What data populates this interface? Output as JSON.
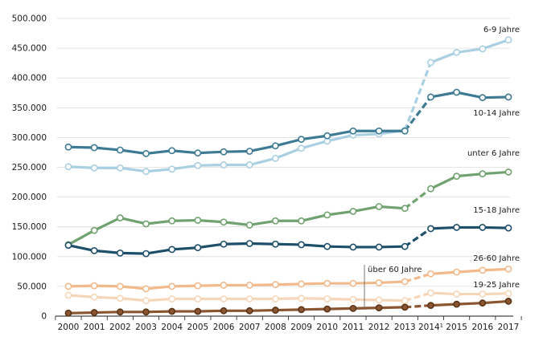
{
  "chart_data": {
    "type": "line",
    "title": "",
    "xlabel": "",
    "ylabel": "",
    "ylim": [
      0,
      500000
    ],
    "y_ticks": [
      {
        "value": 0,
        "label": "0"
      },
      {
        "value": 50000,
        "label": "50.000"
      },
      {
        "value": 100000,
        "label": "100.000"
      },
      {
        "value": 150000,
        "label": "150.000"
      },
      {
        "value": 200000,
        "label": "200.000"
      },
      {
        "value": 250000,
        "label": "250.000"
      },
      {
        "value": 300000,
        "label": "300.000"
      },
      {
        "value": 350000,
        "label": "350.000"
      },
      {
        "value": 400000,
        "label": "400.000"
      },
      {
        "value": 450000,
        "label": "450.000"
      },
      {
        "value": 500000,
        "label": "500.000"
      }
    ],
    "categories": [
      "2000",
      "2001",
      "2002",
      "2003",
      "2004",
      "2005",
      "2006",
      "2007",
      "2008",
      "2009",
      "2010",
      "2011",
      "2012",
      "2013",
      "2014¹",
      "2015",
      "2016",
      "2017"
    ],
    "break_after_index": 13,
    "annotation": {
      "text": "über 60 Jahre",
      "at_index": 11.5
    },
    "series": [
      {
        "name": "6-9 Jahre",
        "color": "#a9cfe3",
        "marker_fill": "#ffffff",
        "values": [
          251000,
          249000,
          249000,
          243000,
          247000,
          253000,
          254000,
          254000,
          265000,
          282000,
          294000,
          304000,
          306000,
          312000,
          426000,
          443000,
          449000,
          464000
        ]
      },
      {
        "name": "10-14 Jahre",
        "color": "#3d7a93",
        "marker_fill": "#ffffff",
        "values": [
          284000,
          283000,
          279000,
          273000,
          278000,
          274000,
          276000,
          277000,
          286000,
          297000,
          303000,
          311000,
          311000,
          311000,
          368000,
          376000,
          367000,
          368000
        ]
      },
      {
        "name": "unter 6 Jahre",
        "color": "#6fa26e",
        "marker_fill": "#ffffff",
        "values": [
          120000,
          144000,
          165000,
          155000,
          160000,
          161000,
          158000,
          153000,
          160000,
          160000,
          170000,
          176000,
          184000,
          181000,
          214000,
          235000,
          239000,
          242000
        ]
      },
      {
        "name": "15-18 Jahre",
        "color": "#1e4f6a",
        "marker_fill": "#ffffff",
        "values": [
          119000,
          110000,
          106000,
          105000,
          112000,
          115000,
          121000,
          122000,
          121000,
          120000,
          117000,
          116000,
          116000,
          117000,
          147000,
          149000,
          149000,
          148000
        ]
      },
      {
        "name": "26-60 Jahre",
        "color": "#f2b98b",
        "marker_fill": "#ffffff",
        "values": [
          50000,
          51000,
          50000,
          46000,
          50000,
          51000,
          52000,
          52000,
          53000,
          54000,
          55000,
          55000,
          56000,
          58000,
          71000,
          74000,
          77000,
          79000
        ]
      },
      {
        "name": "19-25 Jahre",
        "color": "#f6d6b8",
        "marker_fill": "#ffffff",
        "values": [
          35000,
          32000,
          30000,
          26000,
          29000,
          29000,
          29000,
          29000,
          29000,
          30000,
          29000,
          28000,
          27000,
          26000,
          39000,
          37000,
          37000,
          38000
        ]
      },
      {
        "name": "über 60 Jahre",
        "color": "#8a5530",
        "marker_fill": "#ffffff",
        "values": [
          5000,
          6000,
          7000,
          7000,
          8000,
          8000,
          9000,
          9000,
          10000,
          11000,
          12000,
          13000,
          14000,
          15000,
          18000,
          20000,
          22000,
          25000
        ]
      }
    ],
    "series_labels": [
      "6-9 Jahre",
      "10-14 Jahre",
      "unter 6 Jahre",
      "15-18 Jahre",
      "26-60 Jahre",
      "19-25 Jahre"
    ]
  }
}
